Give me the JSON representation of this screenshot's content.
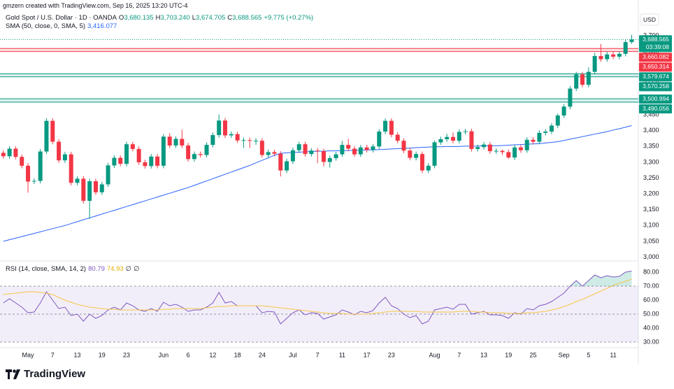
{
  "header": {
    "credit": "gmzern created with TradingView.com, Sep 16, 2025 13:20 UTC-4",
    "currency": "USD",
    "logo": "TradingView"
  },
  "chart_data": [
    {
      "type": "candlestick",
      "title": "Gold Spot / U.S. Dollar · 1D · OANDA",
      "legend": {
        "o_label": "O",
        "o": "3,680.135",
        "h_label": "H",
        "h": "3,703.240",
        "l_label": "L",
        "l": "3,674.705",
        "c_label": "C",
        "c": "3,688.565",
        "change": "+9.775 (+0.27%)"
      },
      "categories": [
        null,
        null,
        null,
        null,
        "May",
        null,
        null,
        null,
        "7",
        null,
        null,
        null,
        "13",
        null,
        null,
        null,
        "19",
        null,
        null,
        null,
        "23",
        null,
        null,
        null,
        null,
        null,
        "Jun",
        null,
        null,
        null,
        "6",
        null,
        null,
        null,
        "12",
        null,
        null,
        null,
        "18",
        null,
        null,
        null,
        "24",
        null,
        null,
        null,
        null,
        "Jul",
        null,
        null,
        null,
        "7",
        null,
        null,
        null,
        "11",
        null,
        null,
        null,
        "17",
        null,
        null,
        null,
        "23",
        null,
        null,
        null,
        null,
        null,
        null,
        "Aug",
        null,
        null,
        null,
        "7",
        null,
        null,
        null,
        "13",
        null,
        null,
        null,
        "19",
        null,
        null,
        null,
        "25",
        null,
        null,
        null,
        null,
        "Sep",
        null,
        null,
        null,
        "5",
        null,
        null,
        null,
        "11",
        null,
        null,
        null
      ],
      "open": [
        3330,
        3319,
        3343,
        3317,
        3289,
        3239,
        3241,
        3334,
        3431,
        3365,
        3306,
        3325,
        3235,
        3248,
        3178,
        3240,
        3205,
        3230,
        3290,
        3314,
        3295,
        3357,
        3342,
        3300,
        3288,
        3318,
        3289,
        3381,
        3353,
        3374,
        3353,
        3310,
        3326,
        3323,
        3355,
        3386,
        3432,
        3385,
        3389,
        3369,
        3370,
        3368,
        3368,
        3323,
        3332,
        3327,
        3274,
        3303,
        3338,
        3357,
        3326,
        3337,
        3335,
        3301,
        3313,
        3325,
        3355,
        3343,
        3325,
        3347,
        3339,
        3350,
        3397,
        3431,
        3387,
        3368,
        3337,
        3314,
        3326,
        3274,
        3289,
        3363,
        3373,
        3380,
        3368,
        3396,
        3398,
        3342,
        3348,
        3356,
        3335,
        3336,
        3332,
        3315,
        3347,
        3338,
        3371,
        3365,
        3393,
        3397,
        3416,
        3448,
        3476,
        3533,
        3578,
        3545,
        3586,
        3636,
        3626,
        3641,
        3634,
        3643,
        3680.135
      ],
      "high": [
        3338,
        3351,
        3351,
        3325,
        3297,
        3249,
        3342,
        3439,
        3439,
        3373,
        3333,
        3333,
        3256,
        3256,
        3248,
        3248,
        3238,
        3298,
        3322,
        3322,
        3365,
        3365,
        3350,
        3308,
        3326,
        3326,
        3389,
        3392,
        3382,
        3403,
        3361,
        3334,
        3334,
        3363,
        3394,
        3451,
        3440,
        3397,
        3397,
        3378,
        3378,
        3376,
        3376,
        3340,
        3340,
        3335,
        3311,
        3346,
        3365,
        3365,
        3345,
        3345,
        3343,
        3321,
        3333,
        3368,
        3374,
        3351,
        3355,
        3355,
        3358,
        3405,
        3439,
        3439,
        3395,
        3376,
        3345,
        3334,
        3334,
        3297,
        3369,
        3381,
        3390,
        3394,
        3404,
        3406,
        3406,
        3356,
        3364,
        3364,
        3344,
        3340,
        3340,
        3355,
        3355,
        3379,
        3379,
        3401,
        3405,
        3424,
        3454,
        3484,
        3541,
        3586,
        3586,
        3600,
        3646,
        3674,
        3649,
        3649,
        3651,
        3688,
        3703.24
      ],
      "low": [
        3311,
        3311,
        3309,
        3281,
        3204,
        3231,
        3233,
        3326,
        3357,
        3298,
        3298,
        3227,
        3227,
        3170,
        3121,
        3197,
        3197,
        3222,
        3282,
        3287,
        3287,
        3334,
        3292,
        3280,
        3280,
        3281,
        3281,
        3345,
        3345,
        3345,
        3302,
        3302,
        3315,
        3315,
        3347,
        3378,
        3377,
        3377,
        3361,
        3345,
        3345,
        3355,
        3315,
        3315,
        3319,
        3255,
        3266,
        3295,
        3330,
        3318,
        3318,
        3297,
        3287,
        3283,
        3305,
        3317,
        3335,
        3317,
        3317,
        3331,
        3331,
        3342,
        3389,
        3379,
        3360,
        3329,
        3306,
        3306,
        3266,
        3266,
        3281,
        3355,
        3365,
        3360,
        3360,
        3388,
        3334,
        3334,
        3340,
        3327,
        3327,
        3323,
        3311,
        3307,
        3330,
        3330,
        3357,
        3357,
        3385,
        3389,
        3408,
        3440,
        3468,
        3525,
        3537,
        3537,
        3578,
        3618,
        3618,
        3626,
        3626,
        3635,
        3674.705
      ],
      "close": [
        3319,
        3343,
        3317,
        3289,
        3239,
        3241,
        3334,
        3431,
        3365,
        3306,
        3325,
        3235,
        3248,
        3178,
        3240,
        3205,
        3230,
        3290,
        3314,
        3295,
        3357,
        3342,
        3300,
        3288,
        3318,
        3289,
        3381,
        3353,
        3374,
        3353,
        3310,
        3326,
        3323,
        3355,
        3386,
        3432,
        3385,
        3389,
        3369,
        3370,
        3368,
        3368,
        3323,
        3332,
        3327,
        3274,
        3303,
        3338,
        3357,
        3326,
        3337,
        3335,
        3301,
        3313,
        3325,
        3355,
        3343,
        3325,
        3347,
        3339,
        3350,
        3397,
        3431,
        3387,
        3368,
        3337,
        3314,
        3326,
        3274,
        3289,
        3363,
        3373,
        3380,
        3368,
        3396,
        3398,
        3342,
        3348,
        3356,
        3335,
        3336,
        3332,
        3315,
        3347,
        3338,
        3371,
        3365,
        3393,
        3397,
        3416,
        3448,
        3476,
        3533,
        3578,
        3545,
        3586,
        3636,
        3626,
        3641,
        3634,
        3643,
        3680,
        3688.565
      ],
      "up_color": "#089981",
      "down_color": "#f23645",
      "last_price": {
        "value": 3688.565,
        "label": "3,688.565",
        "countdown": "03:39:08",
        "color": "#089981"
      },
      "zones": [
        {
          "color": "#f23645",
          "lines": [
            {
              "value": 3660.082,
              "label": "3,660.082"
            },
            {
              "value": 3650.314,
              "label": "3,650.314"
            }
          ]
        },
        {
          "color": "#089981",
          "lines": [
            {
              "value": 3579.674,
              "label": "3,579.674"
            },
            {
              "value": 3570.258,
              "label": "3,570.258"
            }
          ]
        },
        {
          "color": "#089981",
          "lines": [
            {
              "value": 3500.994,
              "label": "3,500.994"
            },
            {
              "value": 3490.056,
              "label": "3,490.056"
            }
          ]
        }
      ],
      "series": [
        {
          "name": "SMA (50, close, 0, SMA, 5)",
          "value_label": "3,416.077",
          "color": "#2962ff",
          "values": [
            3050,
            3055,
            3060,
            3065,
            3070,
            3075,
            3080,
            3085,
            3090,
            3095,
            3100,
            3106,
            3112,
            3118,
            3124,
            3130,
            3136,
            3142,
            3148,
            3154,
            3160,
            3166,
            3172,
            3178,
            3184,
            3190,
            3196,
            3202,
            3208,
            3214,
            3220,
            3227,
            3234,
            3241,
            3248,
            3255,
            3262,
            3269,
            3276,
            3283,
            3290,
            3298,
            3306,
            3314,
            3322,
            3328,
            3330,
            3331,
            3332,
            3333,
            3334,
            3335,
            3335,
            3336,
            3336,
            3337,
            3337,
            3338,
            3338,
            3339,
            3339,
            3340,
            3341,
            3342,
            3343,
            3344,
            3345,
            3346,
            3347,
            3348,
            3349,
            3349,
            3350,
            3350,
            3350,
            3351,
            3351,
            3351,
            3352,
            3352,
            3352,
            3353,
            3354,
            3355,
            3356,
            3357,
            3358,
            3359,
            3361,
            3363,
            3365,
            3369,
            3373,
            3377,
            3381,
            3385,
            3389,
            3393,
            3397,
            3402,
            3406,
            3411,
            3416.077
          ]
        }
      ],
      "ylim": [
        2990,
        3780
      ],
      "yticks": [
        {
          "value": 3000,
          "label": "3,000"
        },
        {
          "value": 3050,
          "label": "3,050"
        },
        {
          "value": 3100,
          "label": "3,100"
        },
        {
          "value": 3150,
          "label": "3,150"
        },
        {
          "value": 3200,
          "label": "3,200"
        },
        {
          "value": 3250,
          "label": "3,250"
        },
        {
          "value": 3300,
          "label": "3,300"
        },
        {
          "value": 3350,
          "label": "3,350"
        },
        {
          "value": 3400,
          "label": "3,400"
        },
        {
          "value": 3450,
          "label": "3,450"
        },
        {
          "value": 3500,
          "label": "3,500"
        },
        {
          "value": 3550,
          "label": "3,550"
        },
        {
          "value": 3600,
          "label": "3,600"
        },
        {
          "value": 3650,
          "label": "3,650"
        },
        {
          "value": 3700,
          "label": "3,700"
        }
      ],
      "grid": false
    },
    {
      "type": "line",
      "title": "RSI (14, close, SMA, 14, 2)",
      "na_labels": [
        "∅",
        "∅"
      ],
      "series": [
        {
          "color": "#7e57c2",
          "last_label": "80.79",
          "values": [
            58,
            61,
            58,
            55,
            51,
            51.5,
            58,
            66,
            60,
            54,
            55,
            49,
            50,
            45,
            50,
            47,
            49,
            53,
            55,
            53,
            58,
            56,
            53,
            52,
            54,
            52,
            58.5,
            56,
            57,
            55,
            52,
            53,
            53,
            55,
            58,
            65.5,
            58,
            59,
            56,
            56,
            56,
            56,
            51,
            52,
            51.5,
            43,
            47,
            51,
            53,
            49.5,
            51,
            50.5,
            46.5,
            48,
            49.5,
            53,
            51.5,
            49.5,
            52,
            51,
            52.5,
            58,
            62,
            56,
            54,
            50,
            47.5,
            49,
            43,
            45,
            53,
            54,
            55,
            53.5,
            57,
            57,
            50,
            51,
            52,
            49.5,
            49.5,
            49,
            47,
            51,
            50,
            54,
            53,
            56,
            57,
            59,
            62,
            65,
            70,
            74,
            70,
            74,
            78,
            76,
            77.5,
            76.5,
            77,
            80,
            80.79
          ]
        },
        {
          "color": "#f7c548",
          "last_label": "74.93",
          "values": [
            64,
            64.5,
            65,
            65.5,
            66,
            66,
            65.5,
            65,
            64,
            62,
            60,
            58.5,
            57,
            56,
            55,
            54.5,
            54,
            53.5,
            53.5,
            53,
            53,
            53,
            53,
            53,
            53,
            53,
            53.5,
            53.5,
            54,
            54,
            54,
            54,
            54,
            54.5,
            55,
            55.5,
            55.5,
            56,
            56,
            56,
            56,
            56,
            56,
            55.5,
            55,
            54.5,
            54,
            53.5,
            53,
            52.5,
            52,
            51.5,
            51,
            50.5,
            50.5,
            50.5,
            50,
            50,
            50,
            50,
            50.5,
            51,
            51.5,
            52,
            52,
            52,
            52,
            52,
            51.5,
            51.5,
            51.5,
            51.5,
            51.5,
            51.5,
            52,
            52,
            52,
            51.5,
            51.5,
            51,
            51,
            51,
            50.5,
            50.5,
            50.5,
            51,
            51,
            51.5,
            52,
            53,
            54,
            55.5,
            57,
            59,
            60.5,
            62.5,
            64.5,
            66.5,
            68.5,
            70.5,
            72,
            73.5,
            74.93
          ]
        }
      ],
      "levels": [
        70,
        50,
        30
      ],
      "band_color": "#7e57c2",
      "overbought_color": "#089981",
      "ylim": [
        26.5,
        86
      ],
      "yticks": [
        {
          "value": 30,
          "label": "30.00"
        },
        {
          "value": 40,
          "label": "40.00"
        },
        {
          "value": 50,
          "label": "50.00"
        },
        {
          "value": 60,
          "label": "60.00"
        },
        {
          "value": 70,
          "label": "70.00"
        },
        {
          "value": 80,
          "label": "80.00"
        }
      ],
      "grid": false
    }
  ]
}
